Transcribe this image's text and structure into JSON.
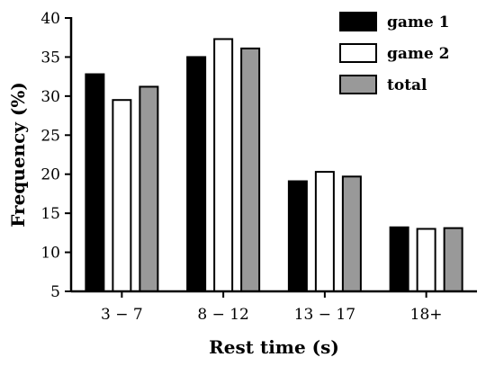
{
  "chart_data": {
    "type": "bar",
    "xlabel": "Rest time (s)",
    "ylabel": "Frequency (%)",
    "ylim": [
      5,
      40
    ],
    "yticks": [
      5,
      10,
      15,
      20,
      25,
      30,
      35,
      40
    ],
    "categories": [
      "3 − 7",
      "8 − 12",
      "13 − 17",
      "18+"
    ],
    "series": [
      {
        "name": "game 1",
        "color": "#000000",
        "values": [
          32.8,
          35.0,
          19.1,
          13.2
        ]
      },
      {
        "name": "game 2",
        "color": "#ffffff",
        "values": [
          29.5,
          37.3,
          20.3,
          13.0
        ]
      },
      {
        "name": "total",
        "color": "#999999",
        "values": [
          31.2,
          36.1,
          19.7,
          13.1
        ]
      }
    ],
    "grid": false,
    "legend_position": "top-right"
  }
}
